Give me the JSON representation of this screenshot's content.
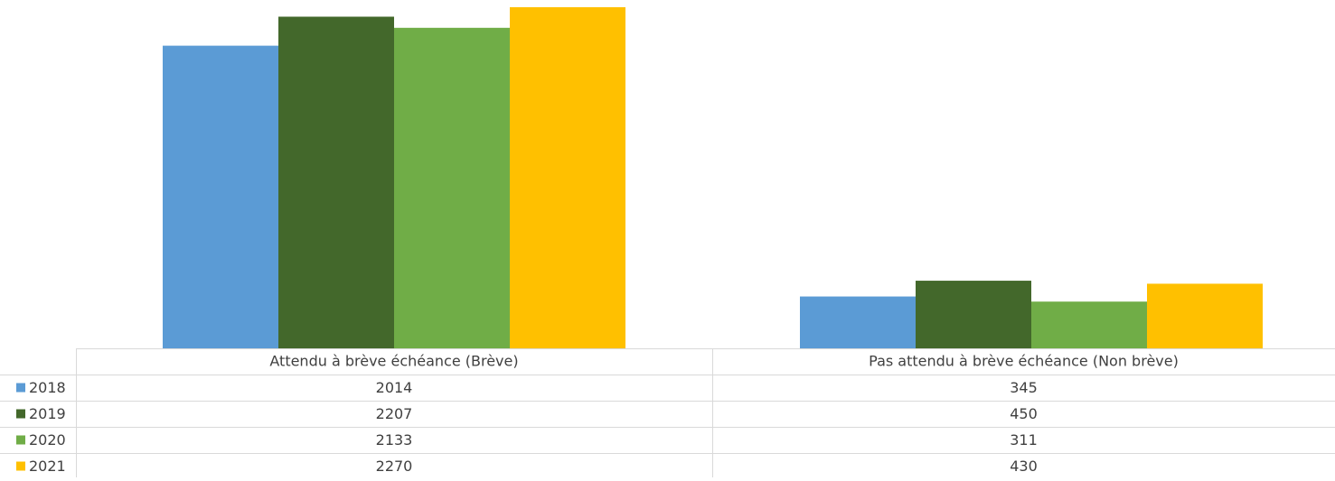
{
  "chart_data": {
    "type": "bar",
    "categories": [
      "Attendu à brève échéance (Brève)",
      "Pas attendu à brève échéance (Non brève)"
    ],
    "series": [
      {
        "name": "2018",
        "color": "#5b9bd5",
        "values": [
          2014,
          345
        ]
      },
      {
        "name": "2019",
        "color": "#43682b",
        "values": [
          2207,
          450
        ]
      },
      {
        "name": "2020",
        "color": "#70ad47",
        "values": [
          2133,
          311
        ]
      },
      {
        "name": "2021",
        "color": "#ffc000",
        "values": [
          2270,
          430
        ]
      }
    ]
  }
}
